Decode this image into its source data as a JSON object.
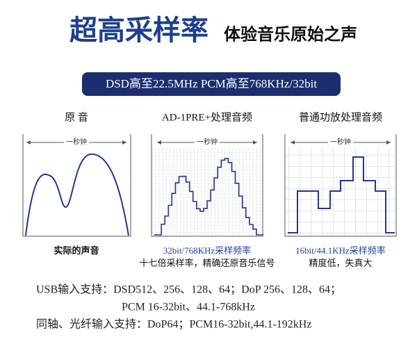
{
  "header": {
    "title": "超高采样率",
    "subtitle": "体验音乐原始之声"
  },
  "banner": "DSD高至22.5MHz  PCM高至768KHz/32bit",
  "panels": [
    {
      "heading": "原 音",
      "span": "一秒钟",
      "caption": "实际的声音"
    },
    {
      "heading": "AD-1PRE+处理音频",
      "span": "一秒钟",
      "caption": "32bit/768KHz采样频率",
      "note": "十七倍采样率，精确还原音乐信号"
    },
    {
      "heading": "普通功放处理音频",
      "span": "一秒钟",
      "caption": "16bit/44.1KHz采样频率",
      "note": "精度低，失真大"
    }
  ],
  "specs": [
    "USB输入支持：DSD512、256、128、64；DoP 256、128、64；",
    "PCM 16-32bit、44.1-768kHz",
    "同轴、光纤输入支持：DoP64；PCM16-32bit,44.1-192kHz"
  ]
}
